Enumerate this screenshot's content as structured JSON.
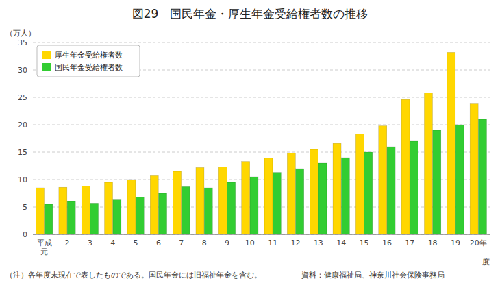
{
  "chart_data": {
    "type": "bar",
    "title": "図29　国民年金・厚生年金受給権者数の推移",
    "ylabel": "（万人）",
    "xlabel": "度",
    "categories": [
      "平成\n元",
      "2",
      "3",
      "4",
      "5",
      "6",
      "7",
      "8",
      "9",
      "10",
      "11",
      "12",
      "13",
      "14",
      "15",
      "16",
      "17",
      "18",
      "19",
      "20年"
    ],
    "series": [
      {
        "name": "厚生年金受給権者数",
        "color": "#FFD700",
        "values": [
          8.5,
          8.6,
          8.8,
          9.5,
          10.0,
          10.7,
          11.5,
          12.2,
          12.3,
          13.3,
          13.9,
          14.8,
          15.5,
          16.6,
          18.3,
          19.8,
          24.6,
          25.8,
          33.2,
          23.8
        ]
      },
      {
        "name": "国民年金受給権者数",
        "color": "#32CD32",
        "values": [
          5.5,
          6.0,
          5.7,
          6.3,
          6.8,
          7.5,
          8.7,
          8.5,
          9.5,
          10.5,
          11.3,
          12.0,
          13.0,
          14.0,
          15.0,
          16.0,
          17.0,
          19.0,
          20.0,
          21.0
        ]
      }
    ],
    "ylim": [
      0,
      35
    ],
    "yticks": [
      0,
      5,
      10,
      15,
      20,
      25,
      30,
      35
    ],
    "grid": true,
    "legend": "upper left",
    "annotations": [
      "（注）各年度末現在で表したものである。国民年金には旧福祉年金を含む。",
      "資料：健康福祉局、神奈川社会保険事務局"
    ]
  }
}
